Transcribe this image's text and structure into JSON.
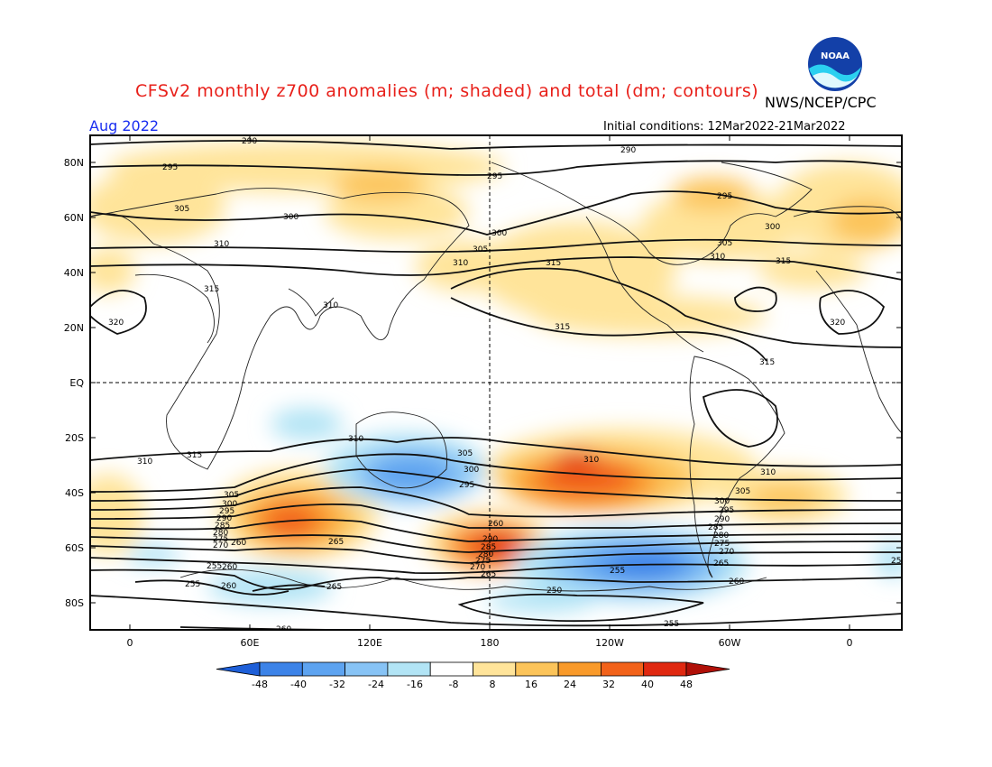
{
  "header": {
    "title": "CFSv2 monthly z700 anomalies (m; shaded) and total (dm; contours)",
    "agency": "NWS/NCEP/CPC",
    "month": "Aug 2022",
    "initial_conditions": "Initial conditions: 12Mar2022-21Mar2022",
    "logo_text": "NOAA"
  },
  "axes": {
    "lat_labels": [
      "80N",
      "60N",
      "40N",
      "20N",
      "EQ",
      "20S",
      "40S",
      "60S",
      "80S"
    ],
    "lon_labels": [
      "0",
      "60E",
      "120E",
      "180",
      "120W",
      "60W",
      "0"
    ]
  },
  "colorbar": {
    "labels": [
      "-48",
      "-40",
      "-32",
      "-24",
      "-16",
      "-8",
      "8",
      "16",
      "24",
      "32",
      "40",
      "48"
    ],
    "colors": [
      "#1e5fd8",
      "#3c83e8",
      "#5da3f0",
      "#87c3f5",
      "#b2e4f5",
      "#ffffff",
      "#ffe49a",
      "#fcc45a",
      "#f99a2a",
      "#f2621a",
      "#e02810",
      "#b01008"
    ]
  },
  "contour_labels": [
    {
      "t": "290"
    },
    {
      "t": "295"
    },
    {
      "t": "305"
    },
    {
      "t": "300"
    },
    {
      "t": "310"
    },
    {
      "t": "315"
    },
    {
      "t": "320"
    },
    {
      "t": "310"
    },
    {
      "t": "295"
    },
    {
      "t": "305"
    },
    {
      "t": "300"
    },
    {
      "t": "310"
    },
    {
      "t": "315"
    },
    {
      "t": "290"
    },
    {
      "t": "295"
    },
    {
      "t": "300"
    },
    {
      "t": "305"
    },
    {
      "t": "310"
    },
    {
      "t": "315"
    },
    {
      "t": "320"
    },
    {
      "t": "315"
    },
    {
      "t": "315"
    },
    {
      "t": "310"
    },
    {
      "t": "315"
    },
    {
      "t": "305"
    },
    {
      "t": "300"
    },
    {
      "t": "295"
    },
    {
      "t": "310"
    },
    {
      "t": "310"
    },
    {
      "t": "305"
    },
    {
      "t": "300"
    },
    {
      "t": "295"
    },
    {
      "t": "290"
    },
    {
      "t": "285"
    },
    {
      "t": "280"
    },
    {
      "t": "275"
    },
    {
      "t": "270"
    },
    {
      "t": "265"
    },
    {
      "t": "260"
    },
    {
      "t": "290"
    },
    {
      "t": "285"
    },
    {
      "t": "280"
    },
    {
      "t": "275"
    },
    {
      "t": "270"
    },
    {
      "t": "265"
    },
    {
      "t": "260"
    },
    {
      "t": "255"
    },
    {
      "t": "260"
    },
    {
      "t": "265"
    },
    {
      "t": "255"
    },
    {
      "t": "250"
    },
    {
      "t": "255"
    },
    {
      "t": "260"
    },
    {
      "t": "305"
    },
    {
      "t": "300"
    },
    {
      "t": "295"
    },
    {
      "t": "290"
    },
    {
      "t": "285"
    },
    {
      "t": "280"
    },
    {
      "t": "275"
    },
    {
      "t": "270"
    },
    {
      "t": "265"
    },
    {
      "t": "260"
    },
    {
      "t": "255"
    },
    {
      "t": "260"
    },
    {
      "t": "255"
    },
    {
      "t": "310"
    }
  ]
}
